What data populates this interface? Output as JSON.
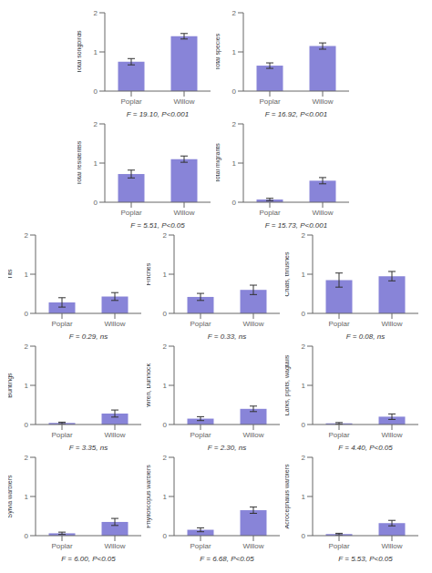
{
  "chart_data": [
    {
      "type": "bar",
      "categories": [
        "Poplar",
        "Willow"
      ],
      "values": [
        0.75,
        1.4
      ],
      "errors": [
        0.08,
        0.07
      ],
      "ylabel": "Total songbirds",
      "xlabel": "F = 19.10, P<0.001",
      "ylim": [
        0,
        2
      ],
      "yticks": [
        0,
        1,
        2
      ],
      "color": "#8884d8"
    },
    {
      "type": "bar",
      "categories": [
        "Poplar",
        "Willow"
      ],
      "values": [
        0.65,
        1.15
      ],
      "errors": [
        0.07,
        0.08
      ],
      "ylabel": "Total species",
      "xlabel": "F = 16.92, P<0.001",
      "ylim": [
        0,
        2
      ],
      "yticks": [
        0,
        1,
        2
      ],
      "color": "#8884d8"
    },
    {
      "type": "bar",
      "categories": [
        "Poplar",
        "Willow"
      ],
      "values": [
        0.72,
        1.1
      ],
      "errors": [
        0.1,
        0.08
      ],
      "ylabel": "Total residentss",
      "xlabel": "F = 5.51, P<0.05",
      "ylim": [
        0,
        2
      ],
      "yticks": [
        0,
        1,
        2
      ],
      "color": "#8884d8"
    },
    {
      "type": "bar",
      "categories": [
        "Poplar",
        "Willow"
      ],
      "values": [
        0.07,
        0.55
      ],
      "errors": [
        0.03,
        0.08
      ],
      "ylabel": "Total migrants",
      "xlabel": "F = 15.73, P<0.001",
      "ylim": [
        0,
        2
      ],
      "yticks": [
        0,
        1,
        2
      ],
      "color": "#8884d8"
    },
    {
      "type": "bar",
      "categories": [
        "Poplar",
        "Willow"
      ],
      "values": [
        0.28,
        0.43
      ],
      "errors": [
        0.12,
        0.1
      ],
      "ylabel": "Tits",
      "xlabel": "F = 0.29, ns",
      "ylim": [
        0,
        2
      ],
      "yticks": [
        0,
        1,
        2
      ],
      "color": "#8884d8"
    },
    {
      "type": "bar",
      "categories": [
        "Poplar",
        "Willow"
      ],
      "values": [
        0.42,
        0.6
      ],
      "errors": [
        0.09,
        0.12
      ],
      "ylabel": "Finches",
      "xlabel": "F = 0.33, ns",
      "ylim": [
        0,
        2
      ],
      "yticks": [
        0,
        1,
        2
      ],
      "color": "#8884d8"
    },
    {
      "type": "bar",
      "categories": [
        "Poplar",
        "Willow"
      ],
      "values": [
        0.85,
        0.95
      ],
      "errors": [
        0.18,
        0.12
      ],
      "ylabel": "Chats, thrushes",
      "xlabel": "F = 0.08, ns",
      "ylim": [
        0,
        2
      ],
      "yticks": [
        0,
        1,
        2
      ],
      "color": "#8884d8"
    },
    {
      "type": "bar",
      "categories": [
        "Poplar",
        "Willow"
      ],
      "values": [
        0.04,
        0.28
      ],
      "errors": [
        0.02,
        0.09
      ],
      "ylabel": "Buntings",
      "xlabel": "F = 3.35, ns",
      "ylim": [
        0,
        2
      ],
      "yticks": [
        0,
        1,
        2
      ],
      "color": "#8884d8"
    },
    {
      "type": "bar",
      "categories": [
        "Poplar",
        "Willow"
      ],
      "values": [
        0.15,
        0.4
      ],
      "errors": [
        0.05,
        0.07
      ],
      "ylabel": "Wren, Dunnock",
      "xlabel": "F = 2.30, ns",
      "ylim": [
        0,
        2
      ],
      "yticks": [
        0,
        1,
        2
      ],
      "color": "#8884d8"
    },
    {
      "type": "bar",
      "categories": [
        "Poplar",
        "Willow"
      ],
      "values": [
        0.03,
        0.2
      ],
      "errors": [
        0.02,
        0.07
      ],
      "ylabel": "Larks, pipits, wagtails",
      "xlabel": "F = 4.40, P<0.05",
      "ylim": [
        0,
        2
      ],
      "yticks": [
        0,
        1,
        2
      ],
      "color": "#8884d8"
    },
    {
      "type": "bar",
      "categories": [
        "Poplar",
        "Willow"
      ],
      "values": [
        0.06,
        0.35
      ],
      "errors": [
        0.03,
        0.09
      ],
      "ylabel": "Sylvia warblers",
      "xlabel": "F = 6.00, P<0.05",
      "ylim": [
        0,
        2
      ],
      "yticks": [
        0,
        1,
        2
      ],
      "color": "#8884d8"
    },
    {
      "type": "bar",
      "categories": [
        "Poplar",
        "Willow"
      ],
      "values": [
        0.15,
        0.65
      ],
      "errors": [
        0.05,
        0.08
      ],
      "ylabel": "Phylloscopus warblers",
      "xlabel": "F = 6.68, P<0.05",
      "ylim": [
        0,
        2
      ],
      "yticks": [
        0,
        1,
        2
      ],
      "color": "#8884d8"
    },
    {
      "type": "bar",
      "categories": [
        "Poplar",
        "Willow"
      ],
      "values": [
        0.04,
        0.32
      ],
      "errors": [
        0.02,
        0.07
      ],
      "ylabel": "Acrocephalus warblers",
      "xlabel": "F = 5.53, P<0.05",
      "ylim": [
        0,
        2
      ],
      "yticks": [
        0,
        1,
        2
      ],
      "color": "#8884d8"
    }
  ]
}
